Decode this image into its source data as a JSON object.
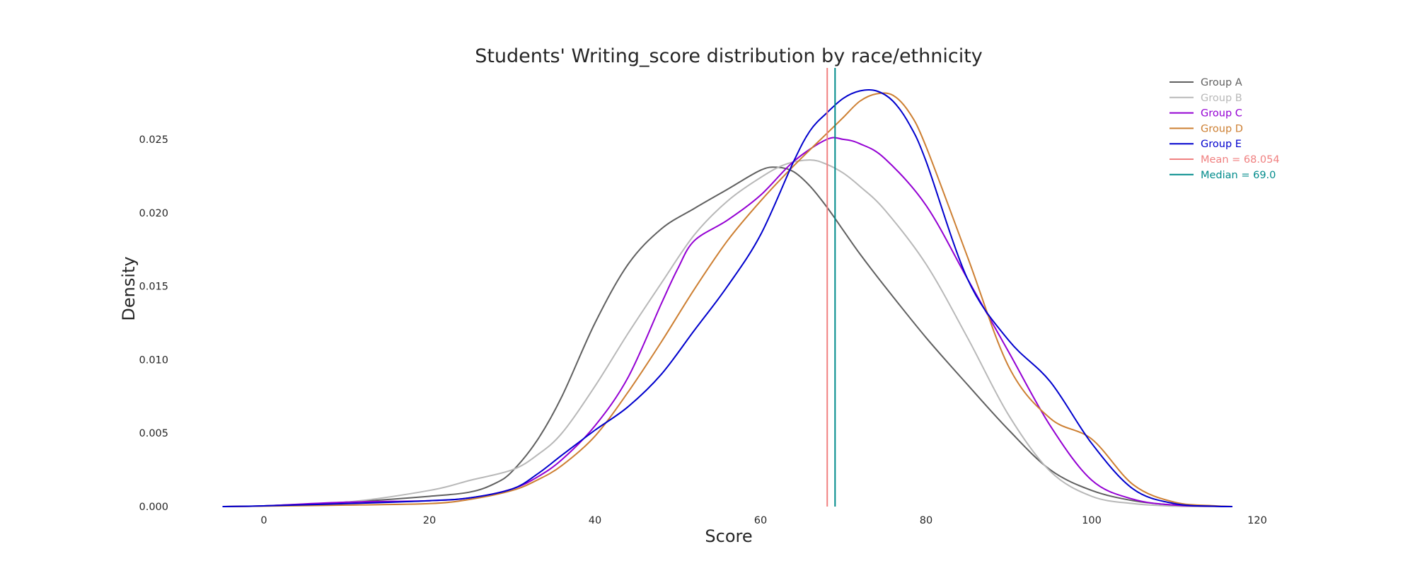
{
  "chart_data": {
    "type": "line",
    "title": "Students' Writing_score distribution by race/ethnicity",
    "xlabel": "Score",
    "ylabel": "Density",
    "xlim": [
      -5,
      120
    ],
    "ylim": [
      0,
      0.0285
    ],
    "xticks": [
      "0",
      "20",
      "40",
      "60",
      "80",
      "100",
      "120"
    ],
    "yticks": [
      "0.000",
      "0.005",
      "0.010",
      "0.015",
      "0.020",
      "0.025"
    ],
    "grid": false,
    "legend": "top-right",
    "series": [
      {
        "name": "Group A",
        "color": "#606060",
        "x": [
          -5,
          0,
          10,
          20,
          25,
          28,
          30,
          33,
          36,
          40,
          44,
          48,
          52,
          56,
          60,
          62,
          64,
          66,
          68,
          70,
          72,
          75,
          80,
          85,
          90,
          95,
          100,
          105,
          110,
          115,
          117
        ],
        "y": [
          0,
          5e-05,
          0.0003,
          0.0007,
          0.001,
          0.0016,
          0.0024,
          0.0045,
          0.0075,
          0.0125,
          0.0165,
          0.0189,
          0.0203,
          0.0216,
          0.0229,
          0.0231,
          0.0228,
          0.0218,
          0.0204,
          0.0188,
          0.0172,
          0.015,
          0.0115,
          0.0083,
          0.0052,
          0.0025,
          0.0011,
          0.0004,
          0.0001,
          2e-05,
          0
        ]
      },
      {
        "name": "Group B",
        "color": "#b8b8b8",
        "x": [
          -5,
          0,
          10,
          20,
          25,
          30,
          33,
          36,
          40,
          44,
          48,
          52,
          56,
          60,
          63,
          66,
          68,
          70,
          72,
          75,
          80,
          85,
          90,
          95,
          100,
          105,
          110,
          115,
          117
        ],
        "y": [
          0,
          5e-05,
          0.0003,
          0.0011,
          0.0018,
          0.0025,
          0.0035,
          0.005,
          0.0082,
          0.0118,
          0.0152,
          0.0185,
          0.0208,
          0.0224,
          0.0233,
          0.0236,
          0.0233,
          0.0227,
          0.0218,
          0.0202,
          0.0165,
          0.0115,
          0.0062,
          0.0024,
          0.0007,
          0.0002,
          3e-05,
          0,
          0
        ]
      },
      {
        "name": "Group C",
        "color": "#9400d3",
        "x": [
          -5,
          0,
          10,
          20,
          25,
          30,
          33,
          36,
          40,
          44,
          48,
          50,
          52,
          56,
          60,
          64,
          68,
          70,
          72,
          75,
          80,
          85,
          90,
          95,
          100,
          105,
          110,
          115,
          117
        ],
        "y": [
          0,
          5e-05,
          0.0003,
          0.0004,
          0.0006,
          0.0012,
          0.002,
          0.0032,
          0.0055,
          0.0088,
          0.0138,
          0.0162,
          0.0181,
          0.0195,
          0.0212,
          0.0235,
          0.025,
          0.025,
          0.0247,
          0.0237,
          0.0205,
          0.0155,
          0.0105,
          0.0055,
          0.0018,
          0.0005,
          0.0001,
          2e-05,
          0
        ]
      },
      {
        "name": "Group D",
        "color": "#cd7f32",
        "x": [
          -5,
          0,
          10,
          20,
          25,
          30,
          33,
          36,
          40,
          44,
          48,
          52,
          56,
          60,
          64,
          68,
          70,
          72,
          74,
          76,
          78,
          80,
          85,
          90,
          95,
          100,
          105,
          110,
          115,
          117
        ],
        "y": [
          0,
          3e-05,
          0.0001,
          0.0002,
          0.0005,
          0.0011,
          0.0018,
          0.0028,
          0.0048,
          0.0078,
          0.0112,
          0.0148,
          0.0181,
          0.0208,
          0.0232,
          0.0254,
          0.0265,
          0.0276,
          0.0281,
          0.028,
          0.0268,
          0.0245,
          0.017,
          0.0095,
          0.006,
          0.0046,
          0.0015,
          0.0003,
          5e-05,
          0
        ]
      },
      {
        "name": "Group E",
        "color": "#0000cd",
        "x": [
          -5,
          0,
          10,
          20,
          25,
          30,
          33,
          36,
          40,
          44,
          48,
          52,
          56,
          60,
          64,
          66,
          68,
          70,
          72,
          74,
          76,
          78,
          80,
          85,
          90,
          95,
          100,
          105,
          110,
          115,
          117
        ],
        "y": [
          0,
          5e-05,
          0.0002,
          0.0004,
          0.0006,
          0.0012,
          0.0022,
          0.0035,
          0.0052,
          0.0068,
          0.009,
          0.012,
          0.015,
          0.0185,
          0.0235,
          0.0256,
          0.0268,
          0.0278,
          0.0283,
          0.0283,
          0.0276,
          0.026,
          0.0235,
          0.0155,
          0.0113,
          0.0085,
          0.0043,
          0.0012,
          0.0002,
          2e-05,
          0
        ]
      }
    ],
    "reference_lines": [
      {
        "name": "Mean = 68.054",
        "x": 68.054,
        "color": "#f08080"
      },
      {
        "name": "Median = 69.0",
        "x": 69.0,
        "color": "#008b8b"
      }
    ]
  }
}
